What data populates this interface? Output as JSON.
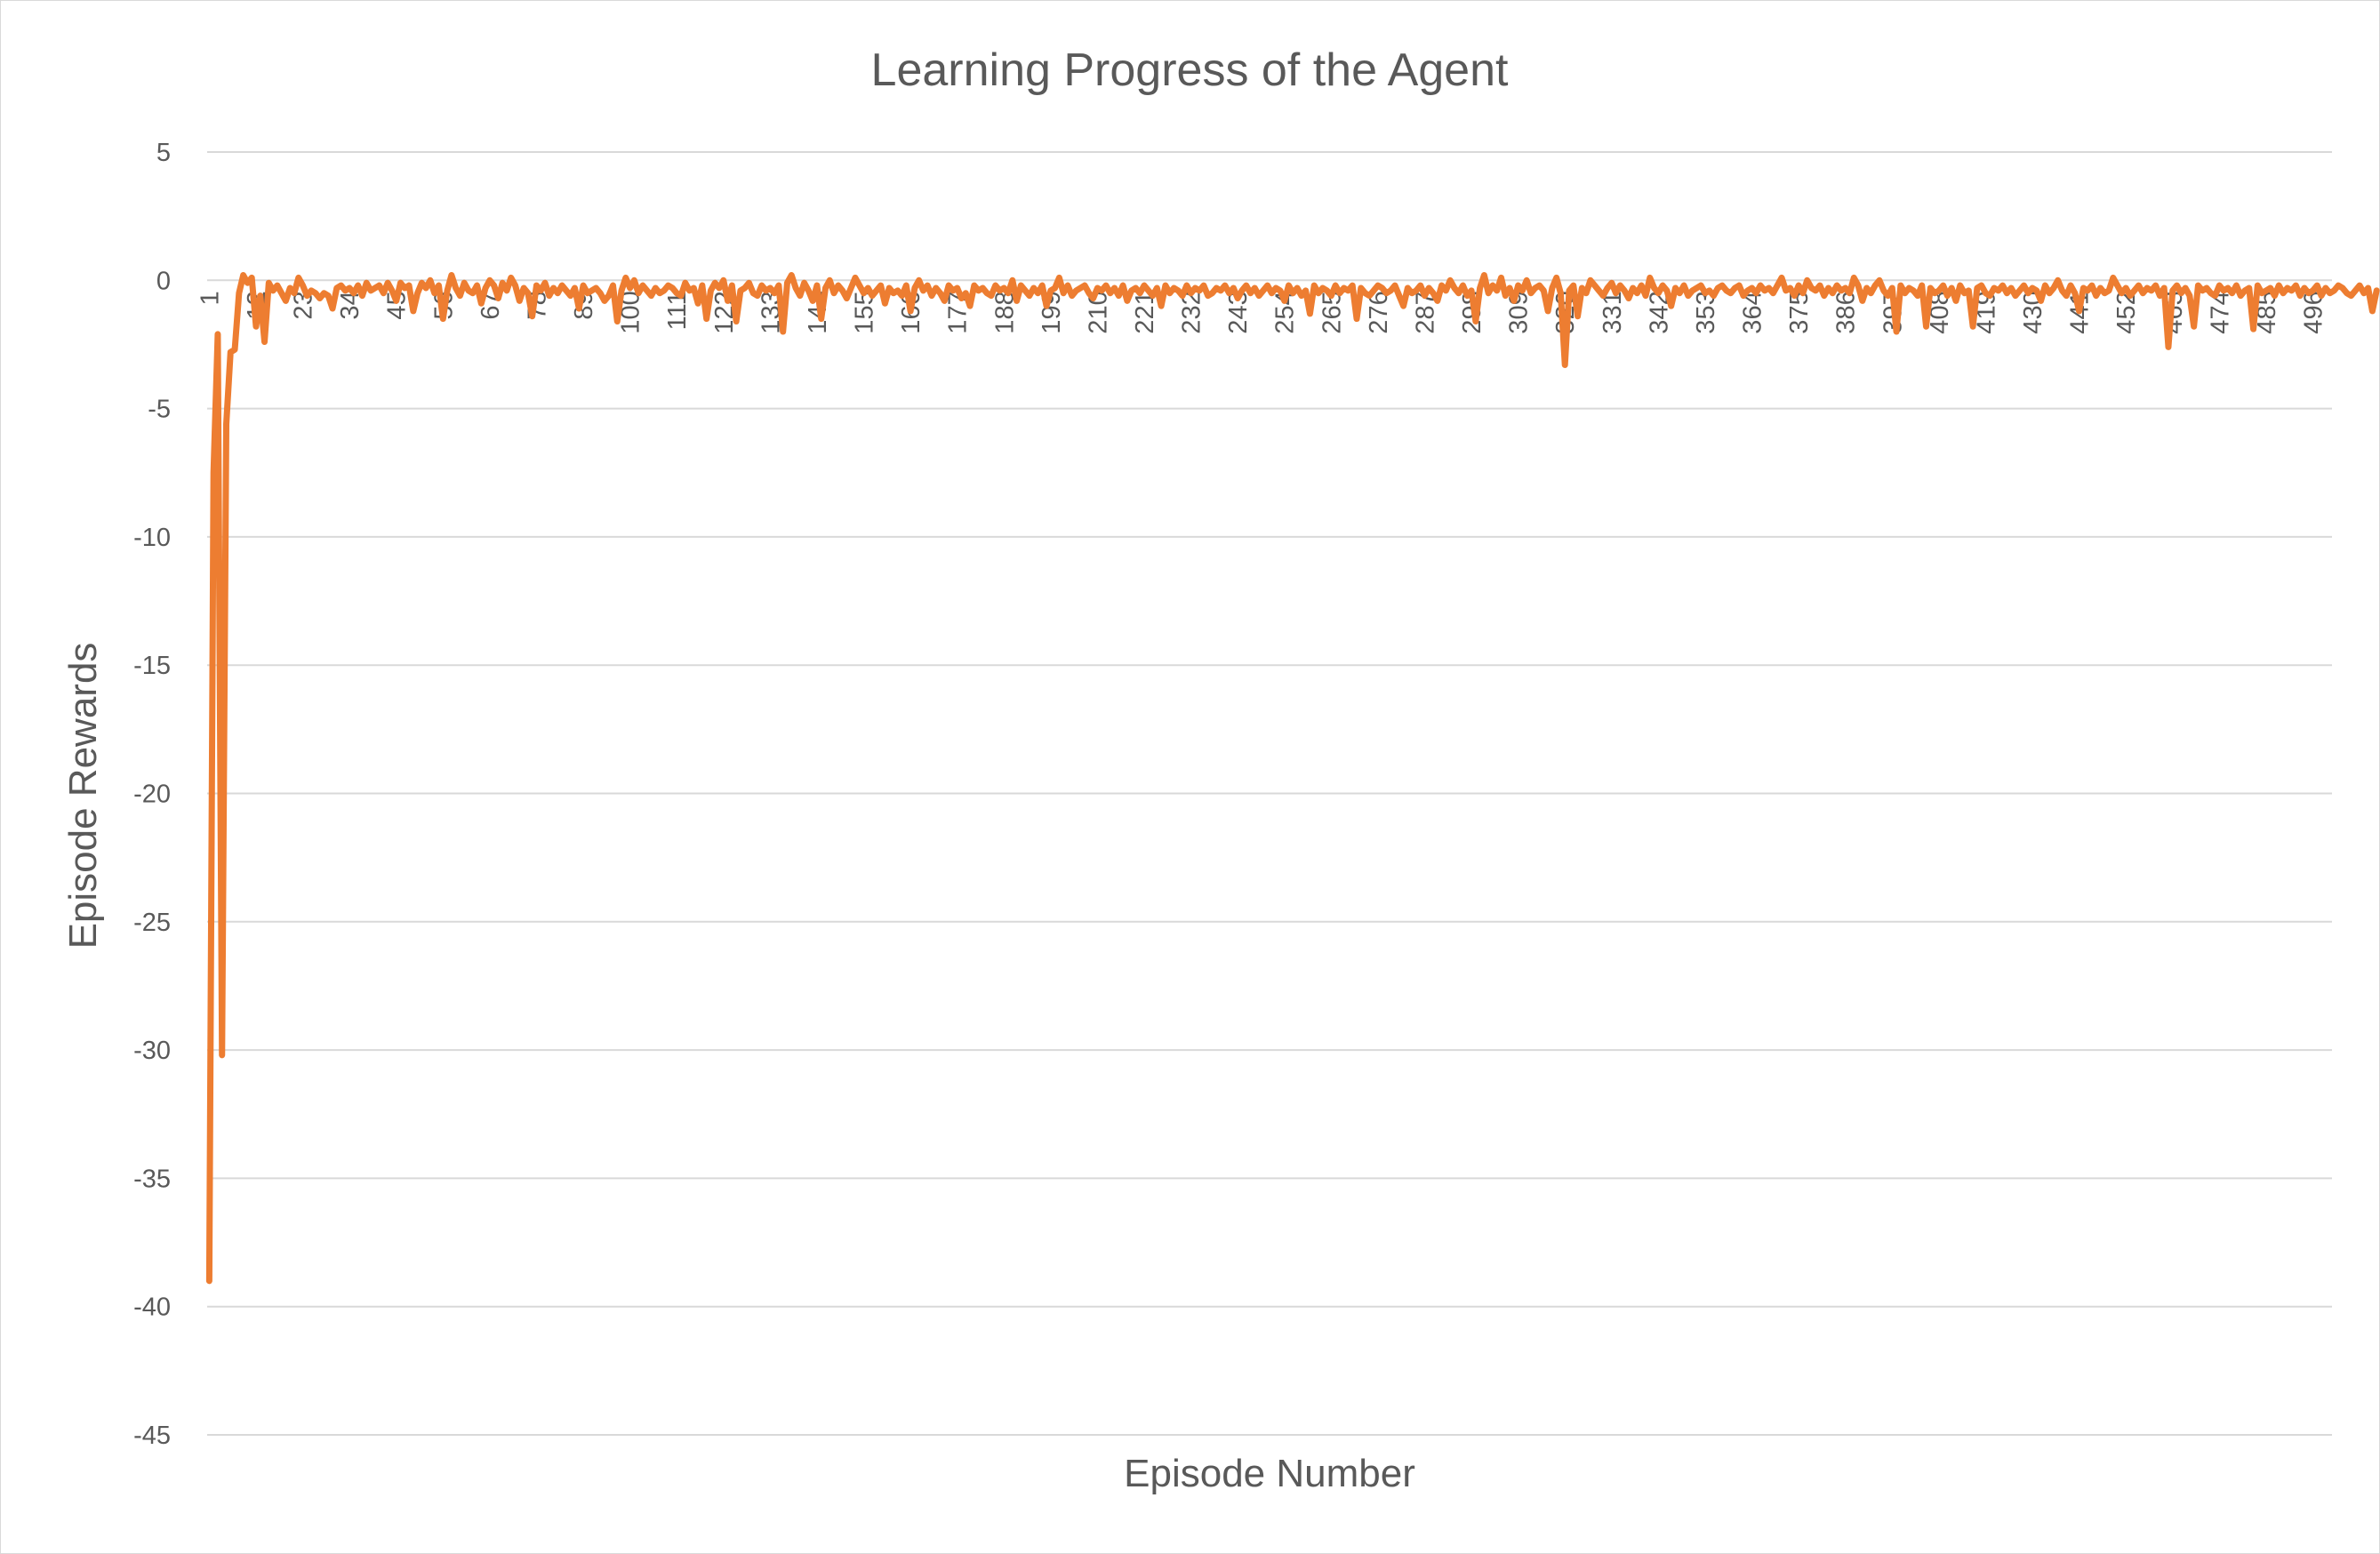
{
  "chart_data": {
    "type": "line",
    "title": "Learning Progress of the Agent",
    "xlabel": "Episode Number",
    "ylabel": "Episode Rewards",
    "ylim": [
      -45,
      5
    ],
    "yticks": [
      5,
      0,
      -5,
      -10,
      -15,
      -20,
      -25,
      -30,
      -35,
      -40,
      -45
    ],
    "xlim": [
      1,
      500
    ],
    "xticks": [
      1,
      12,
      23,
      34,
      45,
      56,
      67,
      78,
      89,
      100,
      111,
      122,
      133,
      144,
      155,
      166,
      177,
      188,
      199,
      210,
      221,
      232,
      243,
      254,
      265,
      276,
      287,
      298,
      309,
      320,
      331,
      342,
      353,
      364,
      375,
      386,
      397,
      408,
      419,
      430,
      441,
      452,
      463,
      474,
      485,
      496
    ],
    "grid": true,
    "legend": "none",
    "colors": {
      "series": "#ed7d31",
      "grid": "#d9d9d9",
      "text": "#595959",
      "border": "#d9d9d9"
    },
    "series": [
      {
        "x_start": 1,
        "x_step": 1,
        "values": [
          -39,
          -7.5,
          -2.1,
          -30.2,
          -5.6,
          -2.8,
          -2.7,
          -0.5,
          0.2,
          -0.1,
          0.1,
          -1.8,
          -0.6,
          -2.4,
          -0.1,
          -0.4,
          -0.2,
          -0.5,
          -0.8,
          -0.3,
          -0.5,
          0.1,
          -0.2,
          -0.6,
          -0.4,
          -0.5,
          -0.7,
          -0.5,
          -0.6,
          -1.1,
          -0.3,
          -0.2,
          -0.4,
          -0.3,
          -0.5,
          -0.2,
          -0.6,
          -0.1,
          -0.4,
          -0.3,
          -0.2,
          -0.5,
          -0.1,
          -0.4,
          -0.8,
          -0.1,
          -0.3,
          -0.2,
          -1.2,
          -0.5,
          -0.1,
          -0.3,
          0.0,
          -0.5,
          -0.2,
          -1.5,
          -0.4,
          0.2,
          -0.3,
          -0.6,
          -0.1,
          -0.4,
          -0.5,
          -0.2,
          -0.9,
          -0.3,
          0.0,
          -0.2,
          -0.7,
          -0.1,
          -0.4,
          0.1,
          -0.2,
          -0.8,
          -0.3,
          -0.5,
          -1.4,
          -0.2,
          -0.4,
          -0.1,
          -0.6,
          -0.3,
          -0.5,
          -0.2,
          -0.4,
          -0.6,
          -0.3,
          -1.1,
          -0.2,
          -0.5,
          -0.4,
          -0.3,
          -0.5,
          -0.8,
          -0.6,
          -0.2,
          -1.6,
          -0.4,
          0.1,
          -0.3,
          0.0,
          -0.5,
          -0.2,
          -0.4,
          -0.6,
          -0.3,
          -0.5,
          -0.4,
          -0.2,
          -0.3,
          -0.5,
          -0.6,
          -0.1,
          -0.4,
          -0.3,
          -0.9,
          -0.2,
          -1.5,
          -0.4,
          -0.1,
          -0.3,
          0.0,
          -0.8,
          -0.2,
          -1.6,
          -0.4,
          -0.3,
          -0.1,
          -0.5,
          -0.6,
          -0.2,
          -0.4,
          -0.3,
          -0.5,
          -0.2,
          -2.0,
          -0.1,
          0.2,
          -0.3,
          -0.6,
          -0.1,
          -0.4,
          -0.8,
          -0.2,
          -1.5,
          -0.3,
          0.0,
          -0.5,
          -0.2,
          -0.4,
          -0.7,
          -0.3,
          0.1,
          -0.2,
          -0.5,
          -0.3,
          -0.6,
          -0.4,
          -0.2,
          -0.9,
          -0.3,
          -0.5,
          -0.4,
          -0.6,
          -0.2,
          -1.2,
          -0.3,
          0.0,
          -0.4,
          -0.2,
          -0.6,
          -0.3,
          -0.5,
          -0.8,
          -0.2,
          -0.4,
          -0.3,
          -0.7,
          -0.5,
          -1.0,
          -0.2,
          -0.4,
          -0.3,
          -0.5,
          -0.6,
          -0.2,
          -0.4,
          -0.3,
          -0.5,
          0.0,
          -0.8,
          -0.2,
          -0.4,
          -0.6,
          -0.3,
          -0.5,
          -0.2,
          -1.0,
          -0.4,
          -0.3,
          0.1,
          -0.5,
          -0.2,
          -0.6,
          -0.4,
          -0.3,
          -0.2,
          -0.5,
          -0.7,
          -0.3,
          -0.4,
          -0.2,
          -0.5,
          -0.3,
          -0.6,
          -0.2,
          -0.8,
          -0.4,
          -0.3,
          -0.5,
          -0.2,
          -0.4,
          -0.6,
          -0.3,
          -1.0,
          -0.2,
          -0.5,
          -0.3,
          -0.4,
          -0.6,
          -0.2,
          -0.5,
          -0.3,
          -0.4,
          -0.2,
          -0.6,
          -0.5,
          -0.3,
          -0.4,
          -0.2,
          -0.5,
          -0.3,
          -0.7,
          -0.4,
          -0.2,
          -0.5,
          -0.3,
          -0.6,
          -0.4,
          -0.2,
          -0.5,
          -0.3,
          -0.4,
          -0.8,
          -0.2,
          -0.5,
          -0.3,
          -0.6,
          -0.4,
          -1.3,
          -0.2,
          -0.5,
          -0.3,
          -0.4,
          -0.6,
          -0.2,
          -0.5,
          -0.3,
          -0.4,
          -0.2,
          -1.5,
          -0.3,
          -0.5,
          -0.6,
          -0.4,
          -0.2,
          -0.3,
          -0.5,
          -0.4,
          -0.2,
          -0.6,
          -1.0,
          -0.3,
          -0.5,
          -0.4,
          -0.2,
          -0.6,
          -0.3,
          -0.5,
          -0.8,
          -0.2,
          -0.4,
          0.0,
          -0.3,
          -0.5,
          -0.2,
          -0.6,
          -0.4,
          -1.6,
          -0.3,
          0.2,
          -0.5,
          -0.2,
          -0.4,
          0.1,
          -0.6,
          -0.3,
          -0.8,
          -0.2,
          -0.4,
          0.0,
          -0.5,
          -0.3,
          -0.2,
          -0.4,
          -1.2,
          -0.3,
          0.1,
          -0.5,
          -3.3,
          -0.4,
          -0.2,
          -1.4,
          -0.3,
          -0.5,
          0.0,
          -0.2,
          -0.4,
          -0.6,
          -0.3,
          -0.1,
          -0.5,
          -0.2,
          -0.4,
          -0.7,
          -0.3,
          -0.5,
          -0.2,
          -0.6,
          0.1,
          -0.3,
          -0.5,
          -0.2,
          -0.4,
          -1.0,
          -0.3,
          -0.5,
          -0.2,
          -0.6,
          -0.4,
          -0.3,
          -0.2,
          -0.5,
          -0.4,
          -0.6,
          -0.3,
          -0.2,
          -0.4,
          -0.5,
          -0.3,
          -0.2,
          -0.6,
          -0.4,
          -0.3,
          -0.5,
          -0.2,
          -0.4,
          -0.3,
          -0.5,
          -0.2,
          0.1,
          -0.4,
          -0.3,
          -0.6,
          -0.2,
          -0.5,
          0.0,
          -0.3,
          -0.4,
          -0.2,
          -0.6,
          -0.3,
          -0.5,
          -0.2,
          -0.4,
          -0.3,
          -0.5,
          0.1,
          -0.2,
          -0.8,
          -0.3,
          -0.5,
          -0.2,
          0.0,
          -0.4,
          -0.6,
          -0.3,
          -2.0,
          -0.2,
          -0.5,
          -0.3,
          -0.4,
          -0.6,
          -0.2,
          -1.8,
          -0.3,
          -0.5,
          -0.4,
          -0.2,
          -0.6,
          -0.3,
          -0.8,
          -0.2,
          -0.5,
          -0.4,
          -1.8,
          -0.3,
          -0.2,
          -0.5,
          -0.6,
          -0.3,
          -0.4,
          -0.2,
          -0.5,
          -0.3,
          -0.6,
          -0.4,
          -0.2,
          -0.5,
          -0.3,
          -0.4,
          -0.8,
          -0.2,
          -0.5,
          -0.3,
          0.0,
          -0.4,
          -0.6,
          -0.2,
          -0.5,
          -1.2,
          -0.3,
          -0.4,
          -0.2,
          -0.6,
          -0.3,
          -0.5,
          -0.4,
          0.1,
          -0.2,
          -0.5,
          -0.3,
          -0.6,
          -0.4,
          -0.2,
          -0.5,
          -0.3,
          -0.4,
          -0.2,
          -0.6,
          -0.3,
          -2.6,
          -0.4,
          -0.2,
          -0.5,
          -0.3,
          -0.6,
          -1.8,
          -0.2,
          -0.4,
          -0.3,
          -0.5,
          -0.6,
          -0.2,
          -0.4,
          -0.3,
          -0.5,
          -0.2,
          -0.6,
          -0.4,
          -0.3,
          -1.9,
          -0.2,
          -0.5,
          -0.4,
          -0.3,
          -0.6,
          -0.2,
          -0.5,
          -0.3,
          -0.4,
          -0.2,
          -0.6,
          -0.3,
          -0.5,
          -0.4,
          -0.2,
          -0.6,
          -0.3,
          -0.5,
          -0.4,
          -0.2,
          -0.3,
          -0.5,
          -0.6,
          -0.4,
          -0.2,
          -0.5,
          -0.3,
          -1.2,
          -0.4
        ]
      }
    ]
  }
}
